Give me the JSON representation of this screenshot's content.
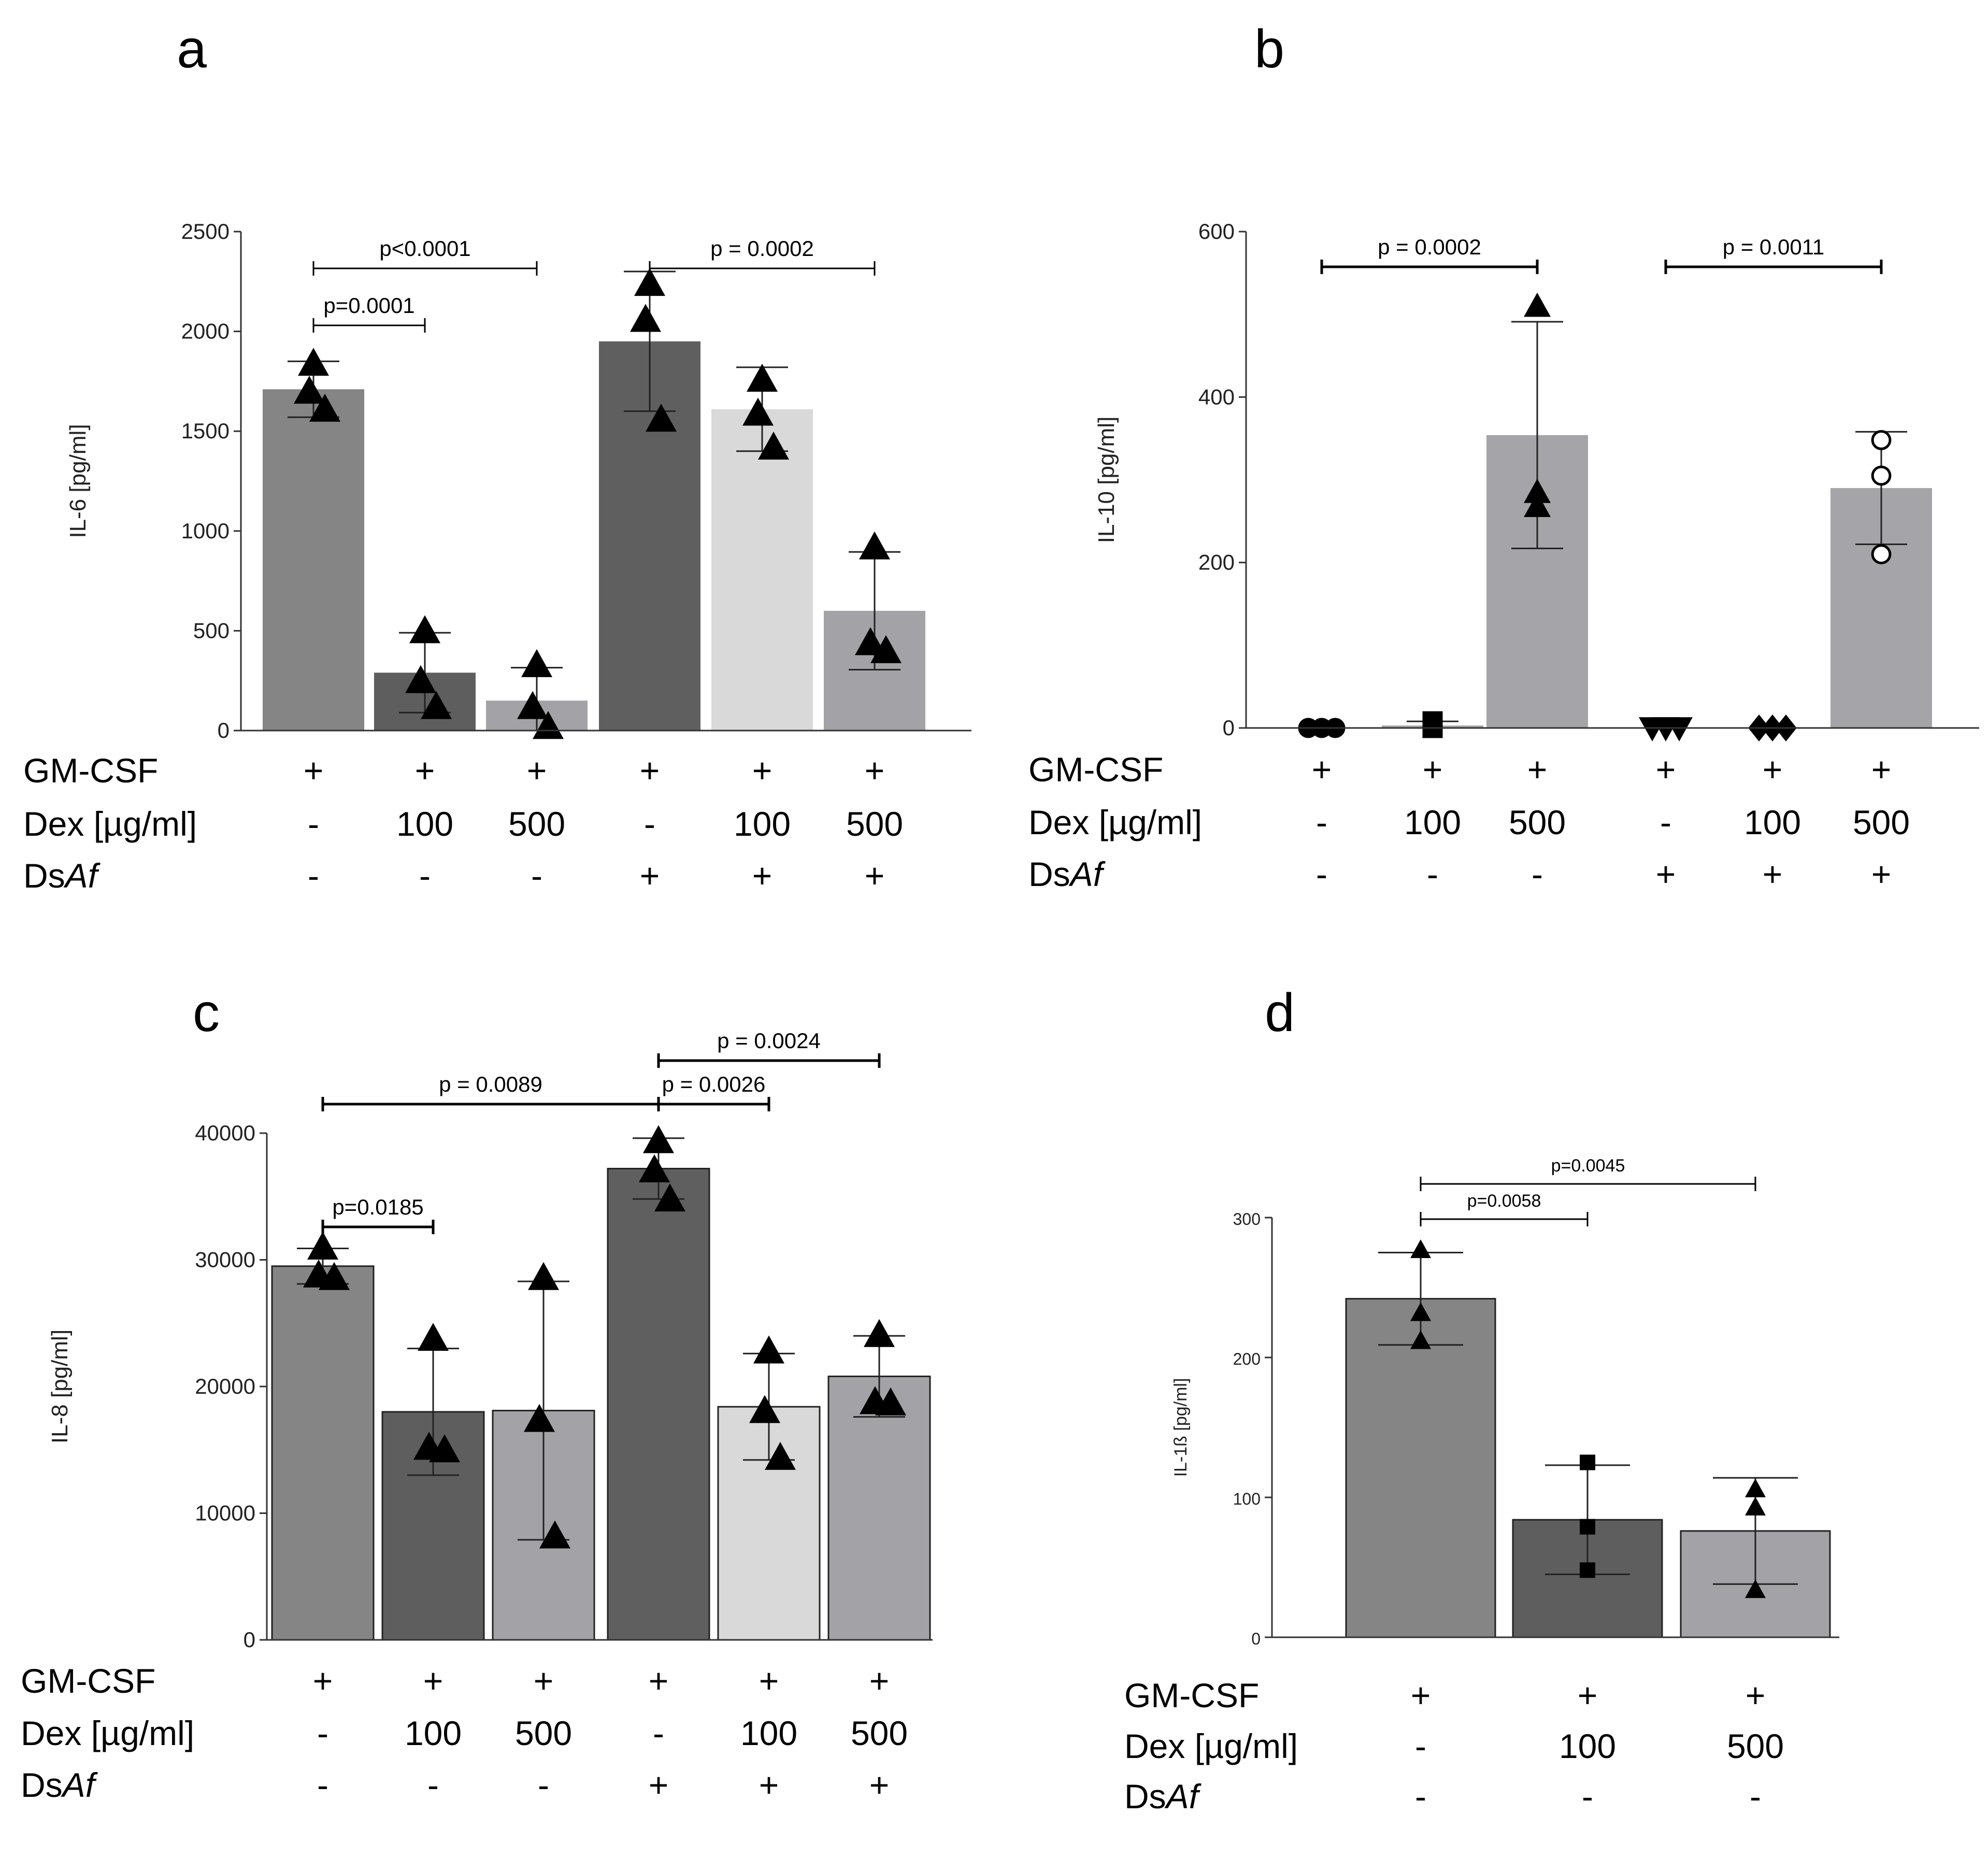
{
  "chart_data": [
    {
      "panel": "a",
      "type": "bar",
      "ylabel": "IL-6 [pg/ml]",
      "ylim": [
        0,
        2500
      ],
      "yticks": [
        0,
        500,
        1000,
        1500,
        2000,
        2500
      ],
      "bar_colors": [
        "#858585",
        "#5e5e5e",
        "#a3a3a7",
        "#5f5f5f",
        "#d9d9d9",
        "#a3a3a7"
      ],
      "values": [
        1710,
        290,
        150,
        1950,
        1610,
        600
      ],
      "errors": [
        140,
        200,
        165,
        350,
        210,
        295
      ],
      "points": [
        [
          1840,
          1700,
          1610
        ],
        [
          500,
          250,
          120
        ],
        [
          330,
          120,
          20
        ],
        [
          2240,
          2060,
          1560
        ],
        [
          1760,
          1590,
          1420
        ],
        [
          920,
          440,
          400
        ]
      ],
      "marker": "triangle",
      "comparisons": [
        {
          "from": 0,
          "to": 1,
          "label": "p=0.0001",
          "level": 1
        },
        {
          "from": 0,
          "to": 2,
          "label": "p<0.0001",
          "level": 2
        },
        {
          "from": 3,
          "to": 5,
          "label": "p = 0.0002",
          "level": 2
        }
      ],
      "conditions": {
        "labels": [
          "GM-CSF",
          "Dex [µg/ml]",
          "DsAf"
        ],
        "rows": [
          [
            "+",
            "+",
            "+",
            "+",
            "+",
            "+"
          ],
          [
            "-",
            "100",
            "500",
            "-",
            "100",
            "500"
          ],
          [
            "-",
            "-",
            "-",
            "+",
            "+",
            "+"
          ]
        ]
      }
    },
    {
      "panel": "b",
      "type": "bar",
      "ylabel": "IL-10 [pg/ml]",
      "ylim": [
        0,
        600
      ],
      "yticks": [
        0,
        200,
        400,
        600
      ],
      "bar_colors": [
        "#a5a5a9",
        "#a5a5a9",
        "#a5a5a9",
        "#a5a5a9",
        "#a5a5a9",
        "#a5a5a9"
      ],
      "values": [
        0,
        3,
        354,
        0,
        0,
        290
      ],
      "errors": [
        0,
        5,
        137,
        0,
        0,
        68
      ],
      "points": [
        [
          0,
          0,
          0
        ],
        [
          8,
          1,
          0
        ],
        [
          510,
          285,
          268
        ],
        [
          0,
          0,
          0
        ],
        [
          0,
          0,
          0
        ],
        [
          348,
          305,
          210
        ]
      ],
      "marker": [
        "circle",
        "square",
        "triangle",
        "triangle-down",
        "diamond",
        "circle-open"
      ],
      "comparisons": [
        {
          "from": 0,
          "to": 2,
          "label": "p = 0.0002",
          "level": 1
        },
        {
          "from": 3,
          "to": 5,
          "label": "p = 0.0011",
          "level": 1
        }
      ],
      "conditions": {
        "labels": [
          "GM-CSF",
          "Dex [µg/ml]",
          "DsAf"
        ],
        "rows": [
          [
            "+",
            "+",
            "+",
            "+",
            "+",
            "+"
          ],
          [
            "-",
            "100",
            "500",
            "-",
            "100",
            "500"
          ],
          [
            "-",
            "-",
            "-",
            "+",
            "+",
            "+"
          ]
        ]
      }
    },
    {
      "panel": "c",
      "type": "bar",
      "ylabel": "IL-8 [pg/ml]",
      "ylim": [
        0,
        40000
      ],
      "yticks": [
        0,
        10000,
        20000,
        30000,
        40000
      ],
      "bar_colors": [
        "#858585",
        "#5e5e5e",
        "#a3a3a7",
        "#5f5f5f",
        "#d9d9d9",
        "#a3a3a7"
      ],
      "values": [
        29500,
        18000,
        18100,
        37200,
        18400,
        20800
      ],
      "errors": [
        1400,
        5000,
        10200,
        2400,
        4200,
        3200
      ],
      "points": [
        [
          31000,
          28800,
          28600
        ],
        [
          23800,
          15200,
          15000
        ],
        [
          28600,
          17400,
          8200
        ],
        [
          39400,
          37100,
          34800
        ],
        [
          22800,
          18100,
          14400
        ],
        [
          24100,
          18800,
          18700
        ]
      ],
      "marker": "triangle",
      "comparisons": [
        {
          "from": 0,
          "to": 1,
          "label": "p=0.0185",
          "level": 1
        },
        {
          "from": 0,
          "to": 3,
          "label": "p = 0.0089",
          "level": 2
        },
        {
          "from": 3,
          "to": 4,
          "label": "p = 0.0026",
          "level": 2
        },
        {
          "from": 3,
          "to": 5,
          "label": "p = 0.0024",
          "level": 3
        }
      ],
      "conditions": {
        "labels": [
          "GM-CSF",
          "Dex [µg/ml]",
          "DsAf"
        ],
        "rows": [
          [
            "+",
            "+",
            "+",
            "+",
            "+",
            "+"
          ],
          [
            "-",
            "100",
            "500",
            "-",
            "100",
            "500"
          ],
          [
            "-",
            "-",
            "-",
            "+",
            "+",
            "+"
          ]
        ]
      }
    },
    {
      "panel": "d",
      "type": "bar",
      "ylabel": "IL-1ß [pg/ml]",
      "ylim": [
        0,
        300
      ],
      "yticks": [
        0,
        100,
        200,
        300
      ],
      "bar_colors": [
        "#858585",
        "#5e5e5e",
        "#a3a3a7"
      ],
      "values": [
        242,
        84,
        76
      ],
      "errors": [
        33,
        39,
        38
      ],
      "points": [
        [
          277,
          232,
          212
        ],
        [
          125,
          79,
          48
        ],
        [
          106,
          93,
          34
        ]
      ],
      "marker": [
        "triangle",
        "square",
        "triangle"
      ],
      "comparisons": [
        {
          "from": 0,
          "to": 1,
          "label": "p=0.0058",
          "level": 1
        },
        {
          "from": 0,
          "to": 2,
          "label": "p=0.0045",
          "level": 2
        }
      ],
      "conditions": {
        "labels": [
          "GM-CSF",
          "Dex [µg/ml]",
          "DsAf"
        ],
        "rows": [
          [
            "+",
            "+",
            "+"
          ],
          [
            "-",
            "100",
            "500"
          ],
          [
            "-",
            "-",
            "-"
          ]
        ]
      }
    }
  ]
}
